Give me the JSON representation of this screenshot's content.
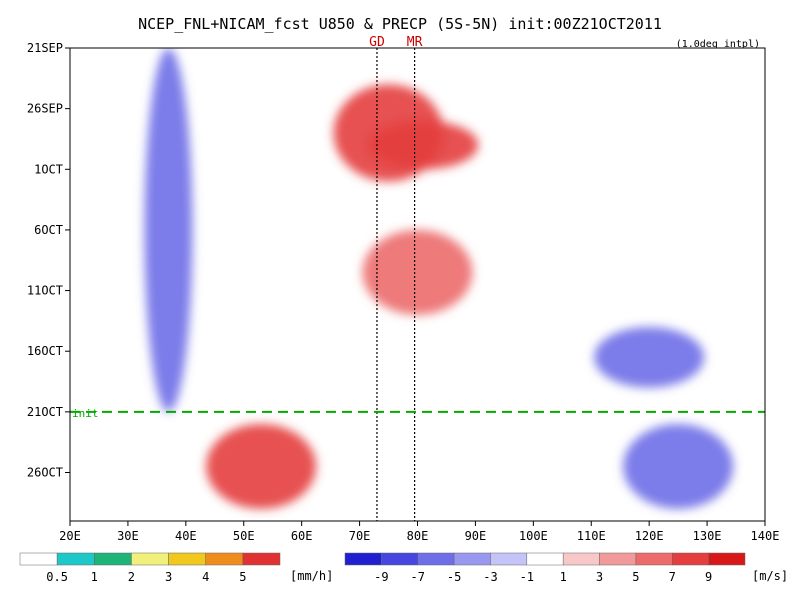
{
  "chart_data": {
    "type": "heatmap",
    "title": "NCEP_FNL+NICAM_fcst U850 & PRECP (5S-5N) init:00Z21OCT2011",
    "note": "(1.0deg intpl)",
    "xlabel": "",
    "ylabel": "",
    "x_ticks": [
      "20E",
      "30E",
      "40E",
      "50E",
      "60E",
      "70E",
      "80E",
      "90E",
      "100E",
      "110E",
      "120E",
      "130E",
      "140E"
    ],
    "x_range": [
      20,
      140
    ],
    "y_ticks": [
      "21SEP",
      "26SEP",
      "1OCT",
      "6OCT",
      "11OCT",
      "16OCT",
      "21OCT",
      "26OCT"
    ],
    "y_range_days": [
      0,
      39
    ],
    "markers": [
      {
        "label": "GD",
        "lon": 73,
        "color": "#cc0000"
      },
      {
        "label": "MR",
        "lon": 79.5,
        "color": "#cc0000"
      }
    ],
    "init_label": "init",
    "init_day": 30,
    "init_color": "#00aa00",
    "u850_colorbar": {
      "labels": [
        "-9",
        "-7",
        "-5",
        "-3",
        "-1",
        "1",
        "3",
        "5",
        "7",
        "9"
      ],
      "unit": "[m/s]",
      "colors": [
        "#2020d0",
        "#4646e0",
        "#6e6ee8",
        "#9898f0",
        "#c4c4f8",
        "#ffffff",
        "#f8c8c8",
        "#f29a9a",
        "#ec6c6c",
        "#e43e3e",
        "#d81818"
      ]
    },
    "precip_colorbar": {
      "labels": [
        "0.5",
        "1",
        "2",
        "3",
        "4",
        "5"
      ],
      "unit": "[mm/h]",
      "colors": [
        "#ffffff",
        "#1ec8c8",
        "#1eb478",
        "#f0f07a",
        "#f0c81e",
        "#f08c1e",
        "#e03232"
      ]
    },
    "u850_features": [
      {
        "lon": 37,
        "day0": 0,
        "day1": 30,
        "u": -7
      },
      {
        "lon": 75,
        "day0": 3,
        "day1": 11,
        "u": 7
      },
      {
        "lon": 81,
        "day0": 6,
        "day1": 10,
        "u": 8
      },
      {
        "lon": 80,
        "day0": 15,
        "day1": 22,
        "u": 6
      },
      {
        "lon": 120,
        "day0": 23,
        "day1": 28,
        "u": -6
      },
      {
        "lon": 125,
        "day0": 31,
        "day1": 38,
        "u": -6
      },
      {
        "lon": 53,
        "day0": 31,
        "day1": 38,
        "u": 7
      }
    ]
  }
}
